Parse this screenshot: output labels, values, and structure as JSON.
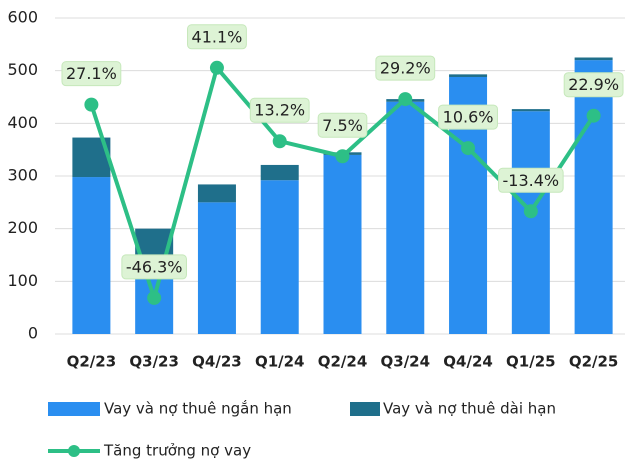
{
  "chart_data": {
    "type": "bar",
    "categories": [
      "Q2/23",
      "Q3/23",
      "Q4/23",
      "Q1/24",
      "Q2/24",
      "Q3/24",
      "Q4/24",
      "Q1/25",
      "Q2/25"
    ],
    "series": [
      {
        "name": "Vay và nợ thuê ngắn hạn",
        "type": "bar",
        "color": "#2a8ef0",
        "values": [
          298,
          120,
          250,
          292,
          340,
          441,
          488,
          423,
          520
        ]
      },
      {
        "name": "Vay và nợ thuê dài hạn",
        "type": "bar",
        "color": "#1f6f8b",
        "values": [
          75,
          80,
          34,
          29,
          5,
          5,
          5,
          4,
          5
        ]
      },
      {
        "name": "Tăng trưởng nợ vay",
        "type": "line",
        "axis": "y2",
        "color": "#2dbf86",
        "values": [
          27.1,
          -46.3,
          41.1,
          13.2,
          7.5,
          29.2,
          10.6,
          -13.4,
          22.9
        ],
        "value_labels": [
          "27.1%",
          "-46.3%",
          "41.1%",
          "13.2%",
          "7.5%",
          "29.2%",
          "10.6%",
          "-13.4%",
          "22.9%"
        ]
      }
    ],
    "stacked": true,
    "ylim": [
      0,
      600
    ],
    "yticks": [
      0,
      100,
      200,
      300,
      400,
      500,
      600
    ],
    "y2lim": [
      -60,
      60
    ],
    "grid": true,
    "legend": "bottom"
  }
}
